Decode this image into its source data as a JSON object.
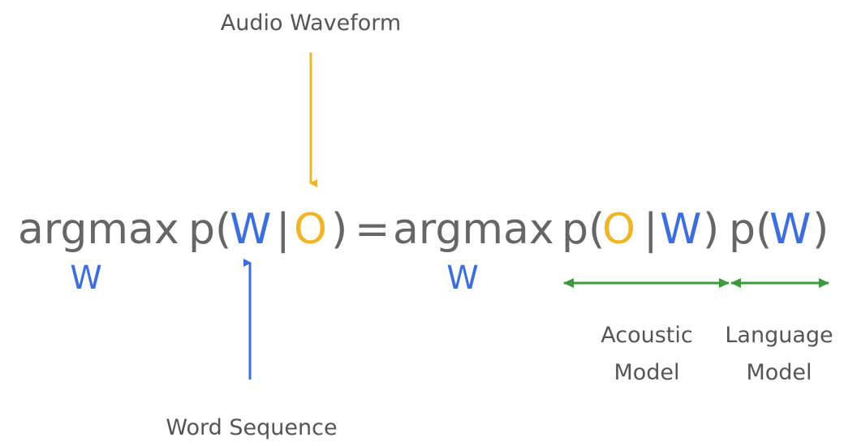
{
  "labels": {
    "audio_waveform": "Audio Waveform",
    "word_sequence": "Word Sequence",
    "acoustic_model": [
      "Acoustic",
      "Model"
    ],
    "language_model": [
      "Language",
      "Model"
    ]
  },
  "equation": {
    "lhs": [
      "argmax",
      "p(",
      "W",
      "|",
      "O",
      ")"
    ],
    "lhs_subscript": "W",
    "equals": "=",
    "rhs": [
      "argmax",
      "p(",
      "O",
      "|",
      "W",
      ")",
      "p(",
      "W",
      ")"
    ],
    "rhs_subscript": "W"
  }
}
